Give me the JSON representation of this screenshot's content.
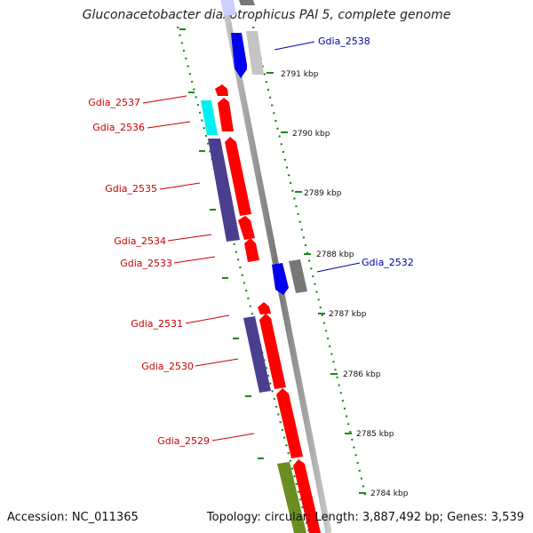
{
  "title": "Gluconacetobacter diazotrophicus PAl 5, complete genome",
  "accession_text": "Accession: NC_011365",
  "topology_text": "Topology: circular; Length: 3,887,492 bp; Genes: 3,539",
  "scale_ticks": [
    {
      "label": "2791 kbp"
    },
    {
      "label": "2790 kbp"
    },
    {
      "label": "2789 kbp"
    },
    {
      "label": "2788 kbp"
    },
    {
      "label": "2787 kbp"
    },
    {
      "label": "2786 kbp"
    },
    {
      "label": "2785 kbp"
    },
    {
      "label": "2784 kbp"
    }
  ],
  "gene_labels": [
    {
      "name": "Gdia_2538",
      "color": "#0000aa"
    },
    {
      "name": "Gdia_2537",
      "color": "#cc0000"
    },
    {
      "name": "Gdia_2536",
      "color": "#cc0000"
    },
    {
      "name": "Gdia_2535",
      "color": "#cc0000"
    },
    {
      "name": "Gdia_2534",
      "color": "#cc0000"
    },
    {
      "name": "Gdia_2533",
      "color": "#cc0000"
    },
    {
      "name": "Gdia_2532",
      "color": "#0000aa"
    },
    {
      "name": "Gdia_2531",
      "color": "#cc0000"
    },
    {
      "name": "Gdia_2530",
      "color": "#cc0000"
    },
    {
      "name": "Gdia_2529",
      "color": "#cc0000"
    }
  ],
  "colors": {
    "cds_forward": "#ff0000",
    "cds_reverse": "#0000ee",
    "cog_blue_purple": "#4a3f8f",
    "cog_cyan": "#00f0f0",
    "cog_gray": "#777777",
    "cog_light_gray": "#c4c4c4",
    "cog_olive": "#6b8e23",
    "backbone": "#8a8a8a",
    "ruler": "#1a8a1a"
  }
}
